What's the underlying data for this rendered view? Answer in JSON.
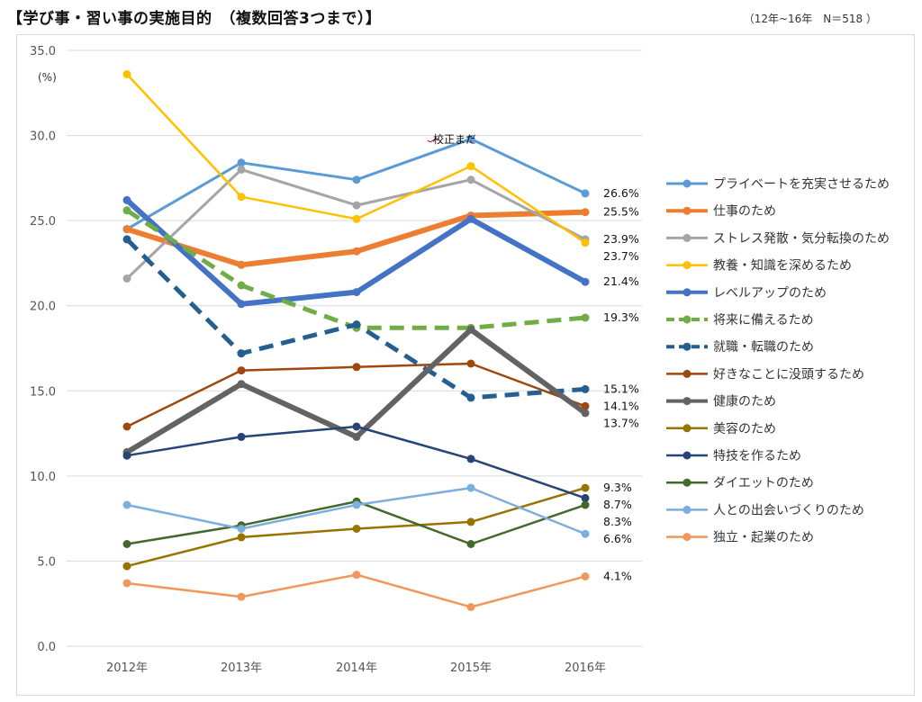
{
  "header": {
    "title": "【学び事・習い事の実施目的　（複数回答3つまで）】",
    "meta": "（12年~16年　N＝518 ）"
  },
  "colors": {
    "blue_light": "#5b9bd5",
    "orange": "#ed7d31",
    "gray": "#a5a5a5",
    "gold": "#ffc000",
    "blue": "#4472c4",
    "green": "#70ad47",
    "navy_dash": "#255e91",
    "brown": "#9e480e",
    "dark_gray": "#636363",
    "olive": "#997300",
    "navy": "#264478",
    "dark_green": "#43682b",
    "sky": "#7cafdd",
    "salmon": "#f1975a"
  },
  "chart_data": {
    "type": "line",
    "title": "【学び事・習い事の実施目的　（複数回答3つまで）】",
    "unit_label": "(%)",
    "ylim": [
      0,
      35
    ],
    "y_ticks": [
      "0.0",
      "5.0",
      "10.0",
      "15.0",
      "20.0",
      "25.0",
      "30.0",
      "35.0"
    ],
    "grid": true,
    "legend": "right",
    "categories": [
      "2012年",
      "2013年",
      "2014年",
      "2015年",
      "2016年"
    ],
    "annotation": "校正まだ",
    "series": [
      {
        "name": "プライベートを充実させるため",
        "values": [
          24.5,
          28.4,
          27.4,
          29.8,
          26.6
        ],
        "end_label": "26.6%",
        "color": "#5b9bd5",
        "width": 3,
        "dash": false
      },
      {
        "name": "仕事のため",
        "values": [
          24.5,
          22.4,
          23.2,
          25.3,
          25.5
        ],
        "end_label": "25.5%",
        "color": "#ed7d31",
        "width": 6,
        "dash": false
      },
      {
        "name": "ストレス発散・気分転換のため",
        "values": [
          21.6,
          28.0,
          25.9,
          27.4,
          23.9
        ],
        "end_label": "23.9%",
        "color": "#a5a5a5",
        "width": 3,
        "dash": false
      },
      {
        "name": "教養・知識を深めるため",
        "values": [
          33.6,
          26.4,
          25.1,
          28.2,
          23.7
        ],
        "end_label": "23.7%",
        "color": "#ffc000",
        "width": 2.5,
        "dash": false
      },
      {
        "name": "レベルアップのため",
        "values": [
          26.2,
          20.1,
          20.8,
          25.1,
          21.4
        ],
        "end_label": "21.4%",
        "color": "#4472c4",
        "width": 6,
        "dash": false
      },
      {
        "name": "将来に備えるため",
        "values": [
          25.6,
          21.2,
          18.7,
          18.7,
          19.3
        ],
        "end_label": "19.3%",
        "color": "#70ad47",
        "width": 5,
        "dash": true
      },
      {
        "name": "就職・転職のため",
        "values": [
          23.9,
          17.2,
          18.9,
          14.6,
          15.1
        ],
        "end_label": "15.1%",
        "color": "#255e91",
        "width": 5,
        "dash": true
      },
      {
        "name": "好きなことに没頭するため",
        "values": [
          12.9,
          16.2,
          16.4,
          16.6,
          14.1
        ],
        "end_label": "14.1%",
        "color": "#9e480e",
        "width": 2.5,
        "dash": false
      },
      {
        "name": "健康のため",
        "values": [
          11.4,
          15.4,
          12.3,
          18.6,
          13.7
        ],
        "end_label": "13.7%",
        "color": "#636363",
        "width": 6,
        "dash": false
      },
      {
        "name": "美容のため",
        "values": [
          4.7,
          6.4,
          6.9,
          7.3,
          9.3
        ],
        "end_label": "9.3%",
        "color": "#997300",
        "width": 2.5,
        "dash": false
      },
      {
        "name": "特技を作るため",
        "values": [
          11.2,
          12.3,
          12.9,
          11.0,
          8.7
        ],
        "end_label": "8.7%",
        "color": "#264478",
        "width": 2.5,
        "dash": false
      },
      {
        "name": "ダイエットのため",
        "values": [
          6.0,
          7.1,
          8.5,
          6.0,
          8.3
        ],
        "end_label": "8.3%",
        "color": "#43682b",
        "width": 2.5,
        "dash": false
      },
      {
        "name": "人との出会いづくりのため",
        "values": [
          8.3,
          6.9,
          8.3,
          9.3,
          6.6
        ],
        "end_label": "6.6%",
        "color": "#7cafdd",
        "width": 2.5,
        "dash": false
      },
      {
        "name": "独立・起業のため",
        "values": [
          3.7,
          2.9,
          4.2,
          2.3,
          4.1
        ],
        "end_label": "4.1%",
        "color": "#f1975a",
        "width": 2.5,
        "dash": false
      }
    ]
  }
}
